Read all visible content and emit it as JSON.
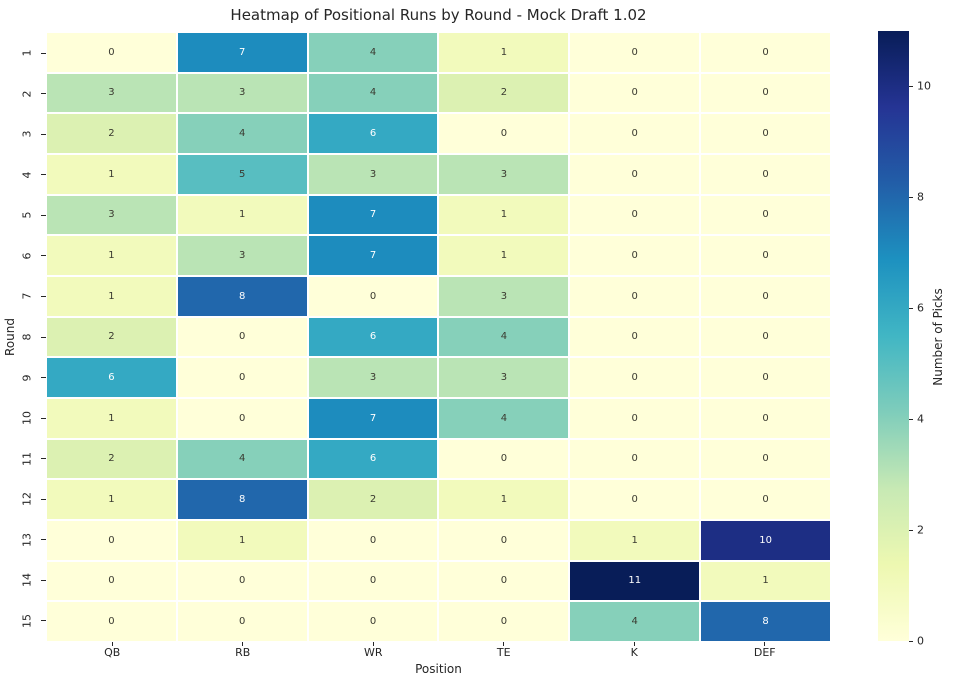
{
  "chart_data": {
    "type": "heatmap",
    "title": "Heatmap of Positional Runs by Round - Mock Draft 1.02",
    "xlabel": "Position",
    "ylabel": "Round",
    "x_categories": [
      "QB",
      "RB",
      "WR",
      "TE",
      "K",
      "DEF"
    ],
    "y_categories": [
      "1",
      "2",
      "3",
      "4",
      "5",
      "6",
      "7",
      "8",
      "9",
      "10",
      "11",
      "12",
      "13",
      "14",
      "15"
    ],
    "values": [
      [
        0,
        7,
        4,
        1,
        0,
        0
      ],
      [
        3,
        3,
        4,
        2,
        0,
        0
      ],
      [
        2,
        4,
        6,
        0,
        0,
        0
      ],
      [
        1,
        5,
        3,
        3,
        0,
        0
      ],
      [
        3,
        1,
        7,
        1,
        0,
        0
      ],
      [
        1,
        3,
        7,
        1,
        0,
        0
      ],
      [
        1,
        8,
        0,
        3,
        0,
        0
      ],
      [
        2,
        0,
        6,
        4,
        0,
        0
      ],
      [
        6,
        0,
        3,
        3,
        0,
        0
      ],
      [
        1,
        0,
        7,
        4,
        0,
        0
      ],
      [
        2,
        4,
        6,
        0,
        0,
        0
      ],
      [
        1,
        8,
        2,
        1,
        0,
        0
      ],
      [
        0,
        1,
        0,
        0,
        1,
        10
      ],
      [
        0,
        0,
        0,
        0,
        11,
        1
      ],
      [
        0,
        0,
        0,
        0,
        4,
        8
      ]
    ],
    "colormap": "YlGnBu",
    "grid": "off",
    "legend_position": "right-colorbar",
    "colorbar": {
      "label": "Number of Picks",
      "ticks": [
        0,
        2,
        4,
        6,
        8,
        10
      ],
      "vmin": 0,
      "vmax": 11
    }
  },
  "colors": {
    "background": "#ffffff",
    "text": "#262626",
    "annot_dark_text": "#3a3a30",
    "annot_light_text": "#ffffff",
    "white_text_min_value": 6,
    "cell_gap": "#ffffff",
    "palette": {
      "0": "#ffffd9",
      "1": "#f2fabc",
      "2": "#dcf1b2",
      "3": "#bae4b5",
      "4": "#86d0ba",
      "5": "#58bec1",
      "6": "#34a9c3",
      "7": "#1d8cbe",
      "8": "#2167ac",
      "10": "#1d2e84",
      "11": "#081d58"
    },
    "colormap_anchors": [
      "#ffffd9",
      "#edf8b1",
      "#c7e9b4",
      "#7fcdbb",
      "#41b6c4",
      "#1d91c0",
      "#225ea8",
      "#253494",
      "#081d58"
    ]
  }
}
